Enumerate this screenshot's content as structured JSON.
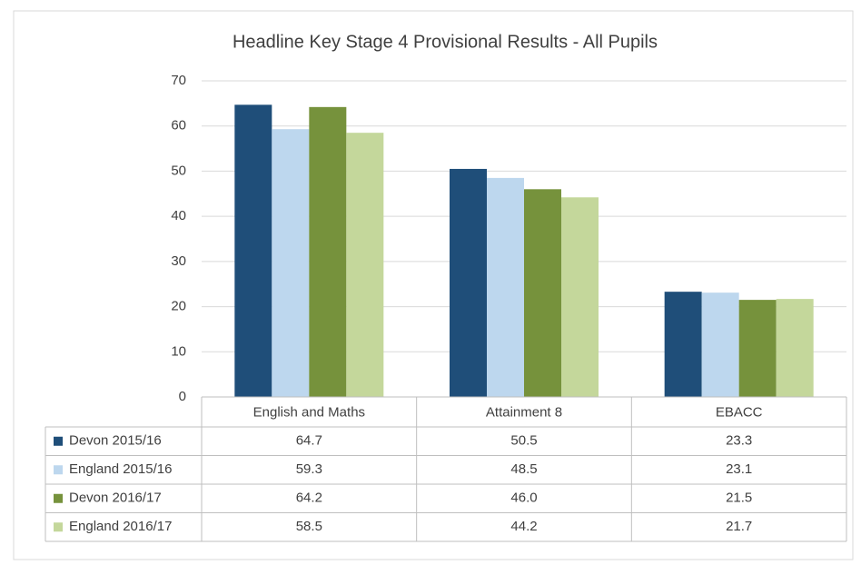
{
  "chart_data": {
    "type": "bar",
    "title": "Headline Key Stage 4 Provisional Results - All Pupils",
    "categories": [
      "English and Maths",
      "Attainment 8",
      "EBACC"
    ],
    "series": [
      {
        "name": "Devon 2015/16",
        "color": "#1f4e79",
        "values": [
          64.7,
          50.5,
          23.3
        ]
      },
      {
        "name": "England 2015/16",
        "color": "#bdd7ee",
        "values": [
          59.3,
          48.5,
          23.1
        ]
      },
      {
        "name": "Devon 2016/17",
        "color": "#76923c",
        "values": [
          64.2,
          46,
          21.5
        ],
        "value_labels": [
          "64.2",
          "46.0",
          "21.5"
        ]
      },
      {
        "name": "England 2016/17",
        "color": "#c4d79b",
        "values": [
          58.5,
          44.2,
          21.7
        ]
      }
    ],
    "ylim": [
      0,
      70
    ],
    "yticks": [
      0,
      10,
      20,
      30,
      40,
      50,
      60,
      70
    ],
    "grid": true,
    "data_table": true
  }
}
